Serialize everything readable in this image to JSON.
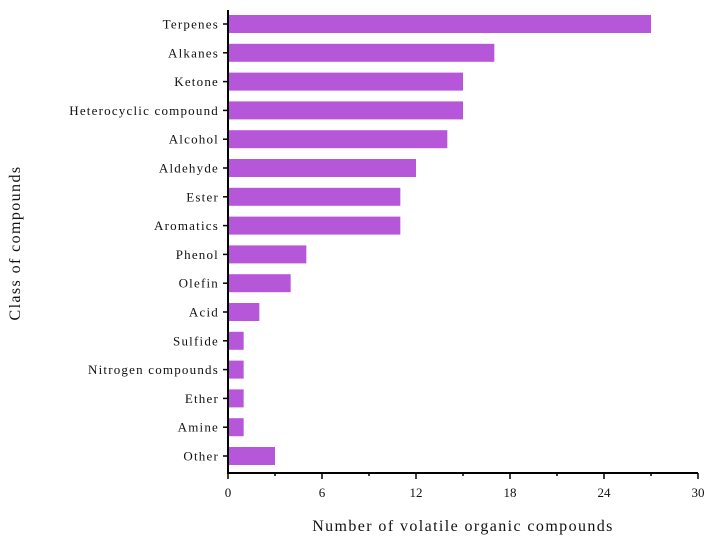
{
  "chart_data": {
    "type": "bar",
    "orientation": "horizontal",
    "categories": [
      "Terpenes",
      "Alkanes",
      "Ketone",
      "Heterocyclic compound",
      "Alcohol",
      "Aldehyde",
      "Ester",
      "Aromatics",
      "Phenol",
      "Olefin",
      "Acid",
      "Sulfide",
      "Nitrogen compounds",
      "Ether",
      "Amine",
      "Other"
    ],
    "values": [
      27,
      17,
      15,
      15,
      14,
      12,
      11,
      11,
      5,
      4,
      2,
      1,
      1,
      1,
      1,
      3
    ],
    "xlabel": "Number of volatile organic compounds",
    "ylabel": "Class of compounds",
    "xlim": [
      0,
      30
    ],
    "xticks": [
      0,
      6,
      12,
      18,
      24,
      30
    ],
    "grid": false,
    "bar_color": "#b657d9"
  }
}
